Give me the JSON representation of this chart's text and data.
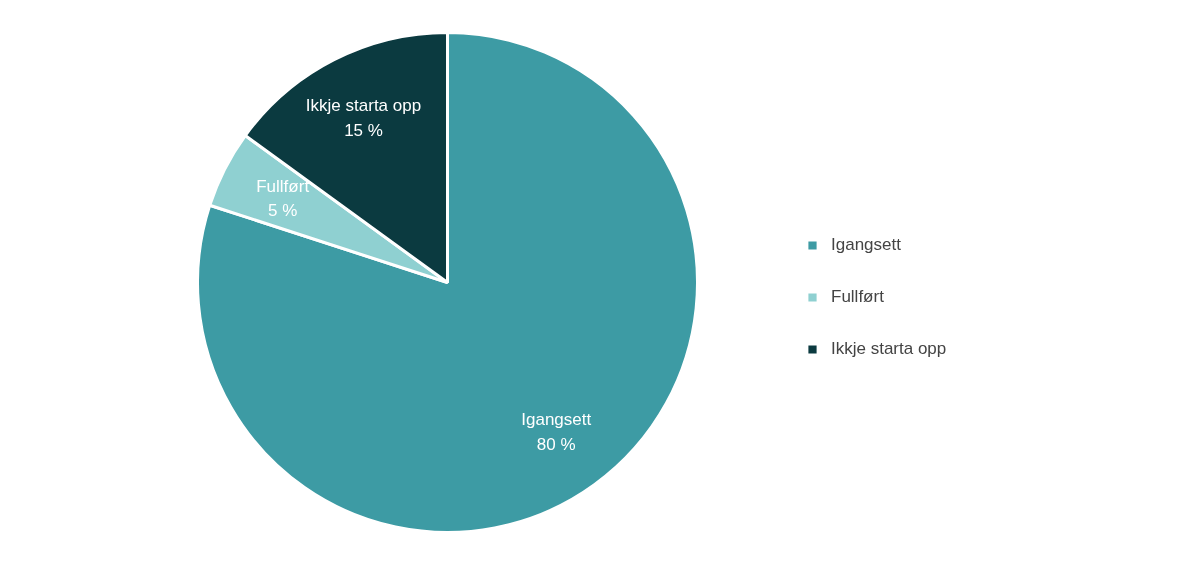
{
  "chart_data": {
    "type": "pie",
    "categories": [
      "Igangsett",
      "Fullført",
      "Ikkje starta opp"
    ],
    "values": [
      80,
      5,
      15
    ],
    "colors": [
      "#3d9ba4",
      "#8fd0d1",
      "#0b3a40"
    ],
    "value_labels": [
      "80 %",
      "5 %",
      "15 %"
    ],
    "legend": "right"
  }
}
